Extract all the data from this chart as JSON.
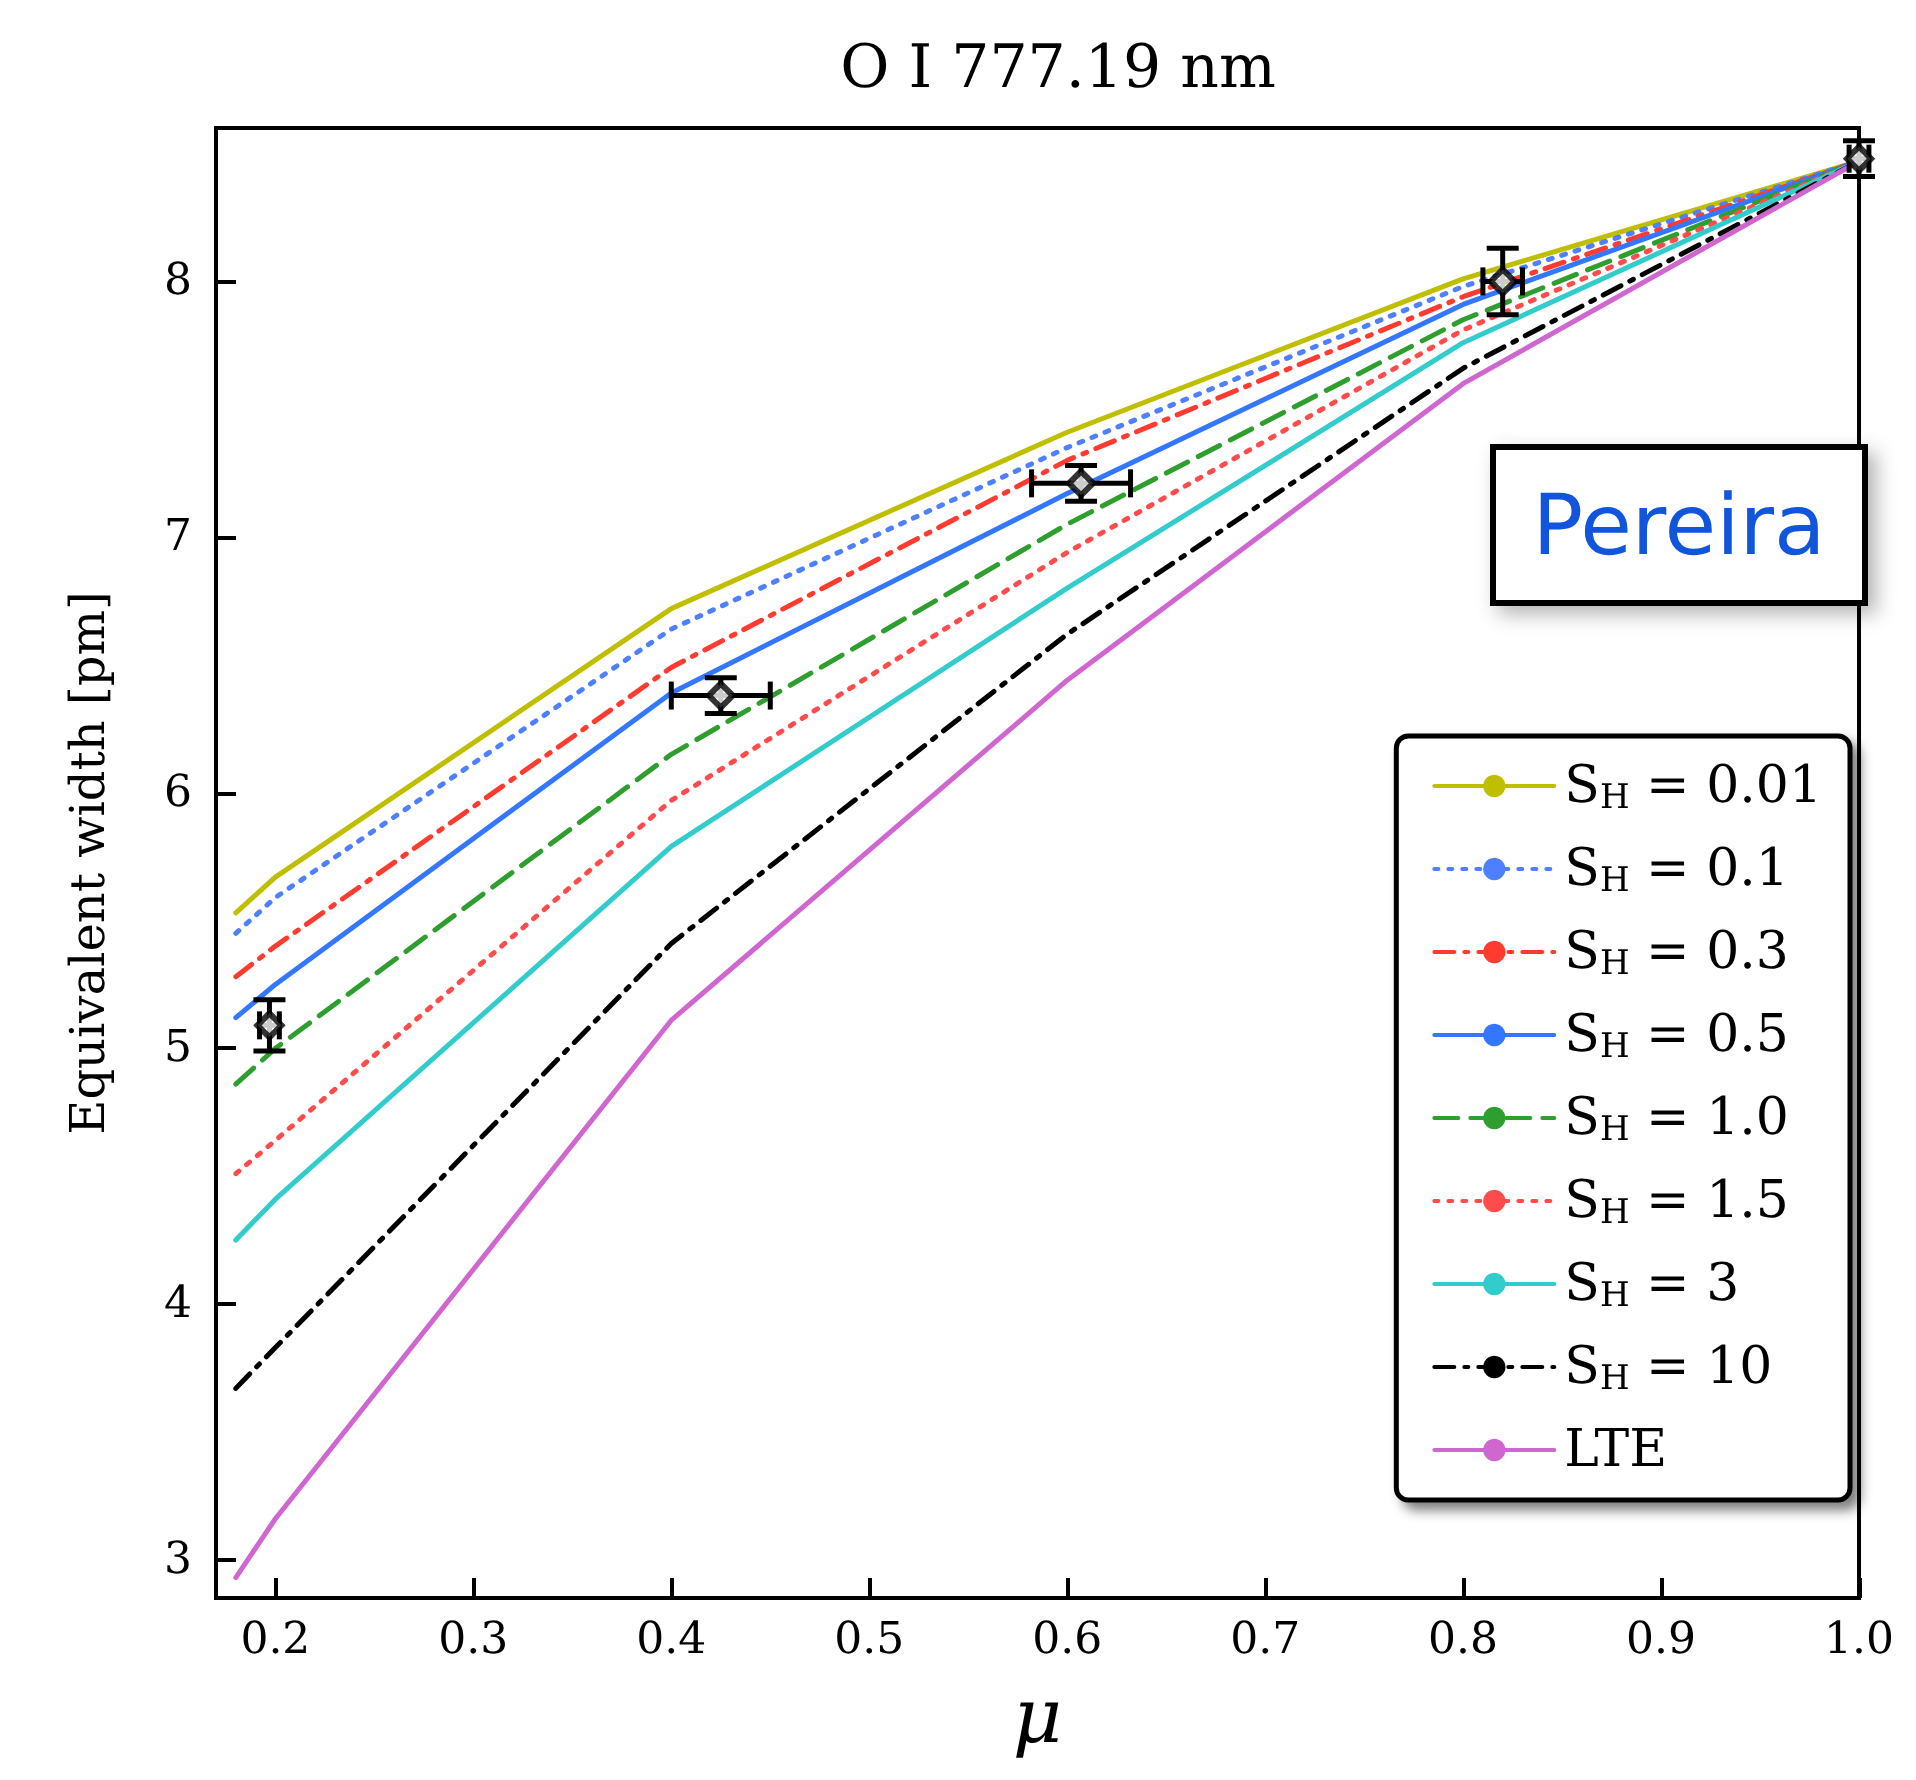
{
  "chart_data": {
    "type": "line",
    "title": "O I 777.19 nm",
    "xlabel": "μ",
    "ylabel": "Equivalent width [pm]",
    "x": [
      0.18,
      0.2,
      0.4,
      0.6,
      0.8,
      1.0
    ],
    "series": [
      {
        "name": "S$_{H}$ = 0.01",
        "color": "#bfbf00",
        "line_style": "solid",
        "values": [
          5.53,
          5.67,
          6.72,
          7.41,
          8.01,
          8.47
        ]
      },
      {
        "name": "S$_{H}$ = 0.1",
        "color": "#4d7fff",
        "line_style": "dotted",
        "values": [
          5.45,
          5.59,
          6.64,
          7.35,
          7.98,
          8.47
        ]
      },
      {
        "name": "S$_{H}$ = 0.3",
        "color": "#ff3b30",
        "line_style": "dashdot",
        "values": [
          5.28,
          5.4,
          6.49,
          7.3,
          7.94,
          8.47
        ]
      },
      {
        "name": "S$_{H}$ = 0.5",
        "color": "#3377ff",
        "line_style": "solid",
        "values": [
          5.12,
          5.25,
          6.39,
          7.17,
          7.91,
          8.47
        ]
      },
      {
        "name": "S$_{H}$ = 1.0",
        "color": "#2e9e2e",
        "line_style": "dashed",
        "values": [
          4.86,
          5.0,
          6.15,
          7.05,
          7.85,
          8.47
        ]
      },
      {
        "name": "S$_{H}$ = 1.5",
        "color": "#ff4b4b",
        "line_style": "dotted",
        "values": [
          4.51,
          4.64,
          5.97,
          6.94,
          7.81,
          8.47
        ]
      },
      {
        "name": "S$_{H}$ = 3",
        "color": "#33cccc",
        "line_style": "solid",
        "values": [
          4.25,
          4.41,
          5.79,
          6.8,
          7.76,
          8.47
        ]
      },
      {
        "name": "S$_{H}$ = 10",
        "color": "#000000",
        "line_style": "dashdot",
        "values": [
          3.67,
          3.83,
          5.41,
          6.62,
          7.66,
          8.47
        ]
      },
      {
        "name": "LTE",
        "color": "#d066d0",
        "line_style": "solid",
        "values": [
          2.93,
          3.16,
          5.11,
          6.44,
          7.6,
          8.47
        ]
      },
      {
        "type": "scatter",
        "color": "#000000",
        "marker": "diamond",
        "x": [
          0.197,
          0.425,
          0.607,
          0.82,
          1.0
        ],
        "values": [
          5.09,
          6.38,
          7.21,
          8.0,
          8.48
        ],
        "errors": [
          0.1,
          0.07,
          0.07,
          0.13,
          0.07
        ],
        "xerrors": [
          0.005,
          0.025,
          0.025,
          0.01,
          0.005
        ]
      }
    ],
    "xlim": [
      0.17,
      1.0
    ],
    "ylim": [
      2.85,
      8.6
    ],
    "xticks": [
      0.2,
      0.3,
      0.4,
      0.5,
      0.6,
      0.7,
      0.8,
      0.9,
      {
        "value": 1.0,
        "label": "1.0"
      }
    ],
    "yticks": [
      3,
      4,
      5,
      6,
      7,
      8
    ],
    "grid": false,
    "legend": "bottom right",
    "annotations": [
      "Pereira"
    ]
  }
}
